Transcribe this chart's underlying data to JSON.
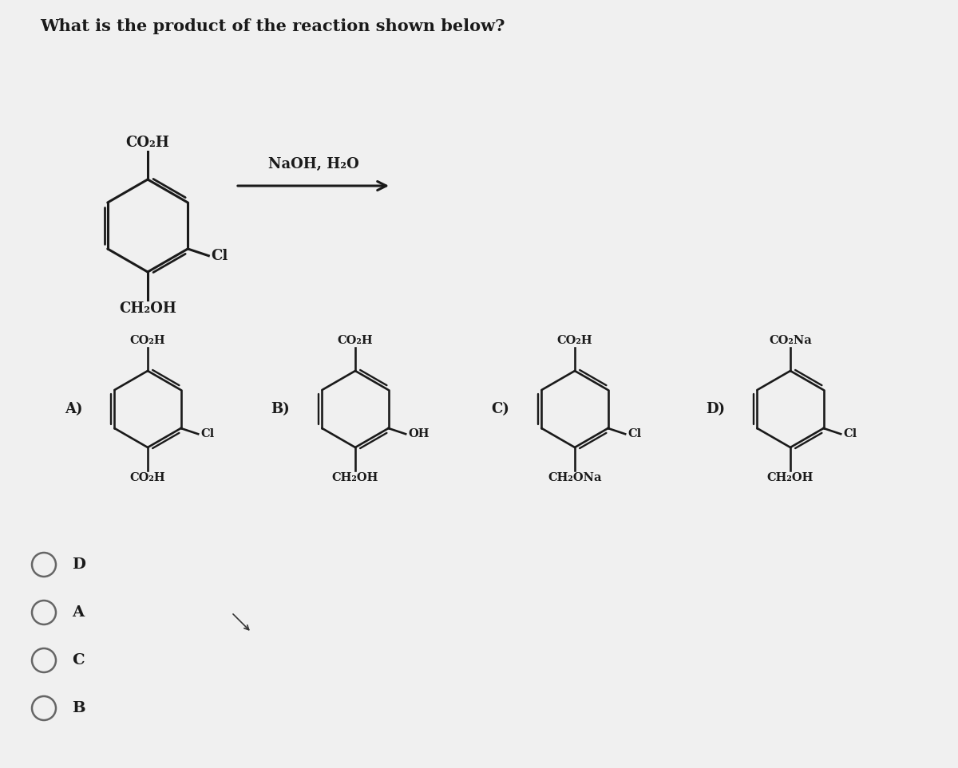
{
  "title": "What is the product of the reaction shown below?",
  "bg_color": "#f0f0f0",
  "text_color": "#1a1a1a",
  "title_fontsize": 15,
  "reagent": "NaOH, H₂O",
  "choices": [
    "D",
    "A",
    "C",
    "B"
  ],
  "reactant_top_label": "CO₂H",
  "reactant_cl_label": "Cl",
  "reactant_bottom_label": "CH₂OH",
  "A_top": "CO₂H",
  "A_right": "Cl",
  "A_bottom": "CO₂H",
  "B_top": "CO₂H",
  "B_right": "OH",
  "B_bottom": "CH₂OH",
  "C_top": "CO₂H",
  "C_right": "Cl",
  "C_bottom": "CH₂ONa",
  "D_top": "CO₂Na",
  "D_right": "Cl",
  "D_bottom": "CH₂OH"
}
